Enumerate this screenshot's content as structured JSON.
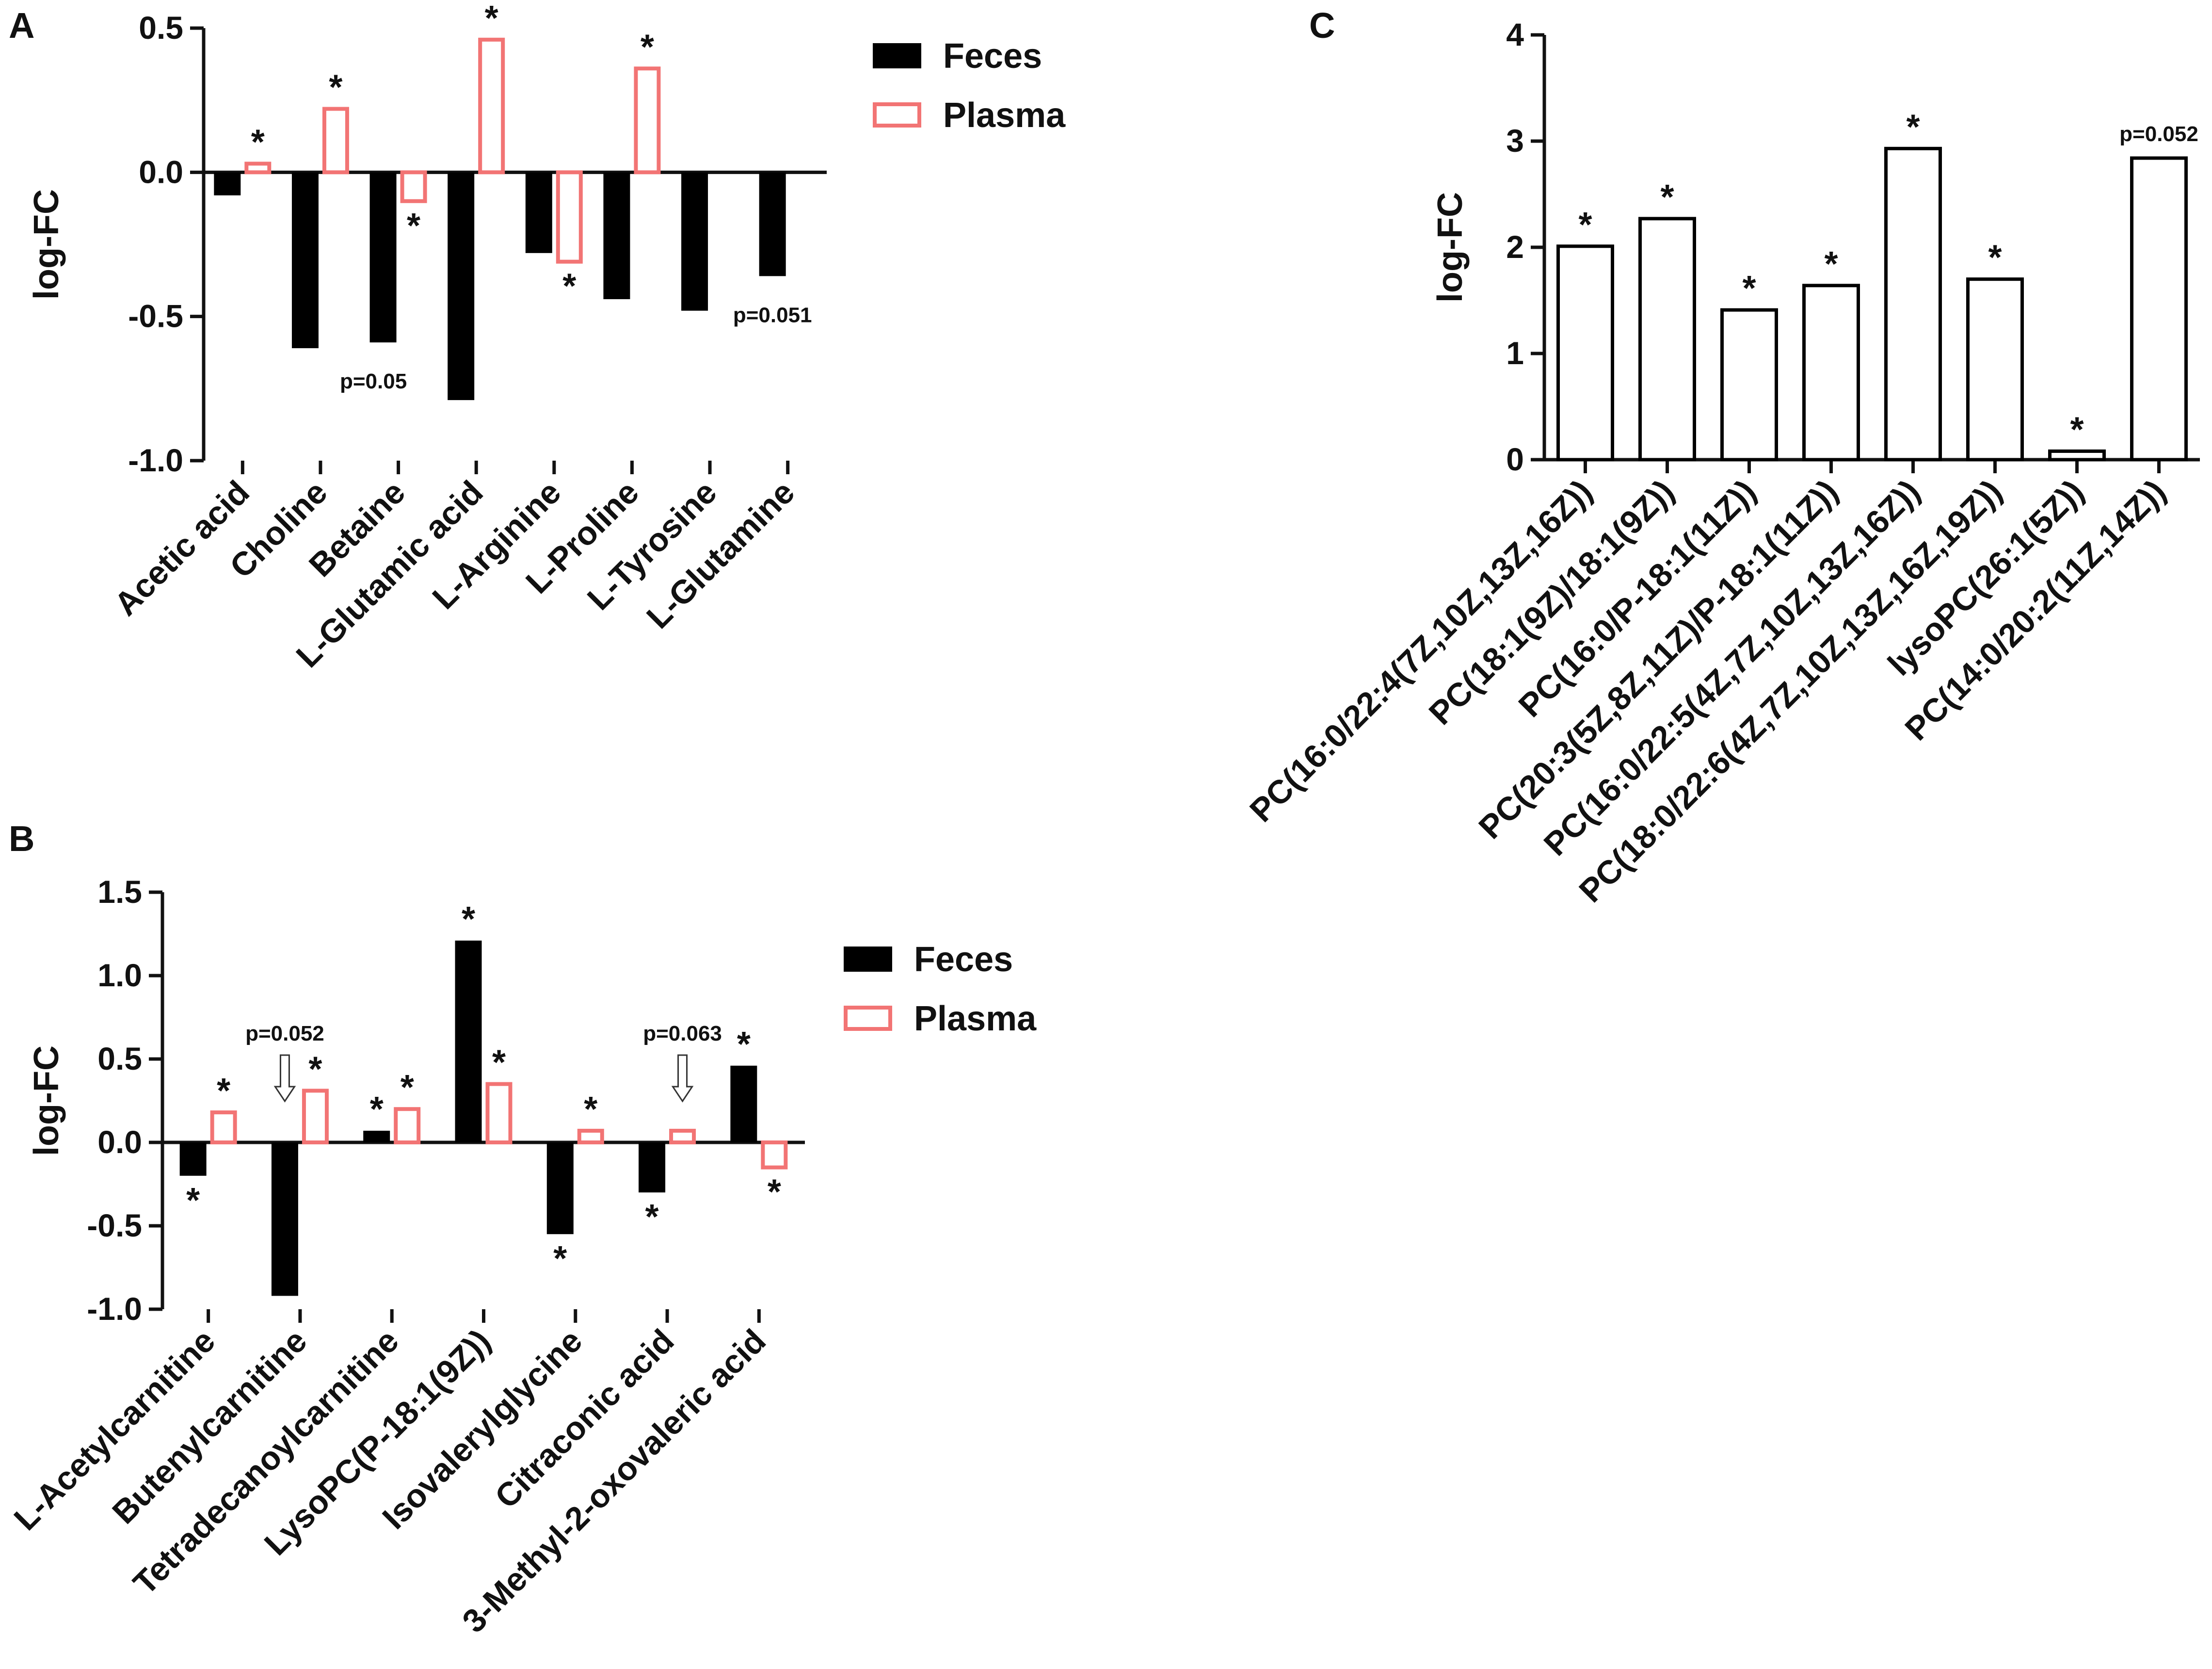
{
  "colors": {
    "feces": "#000000",
    "plasma": "#f27474",
    "open_bar": "#000000"
  },
  "chart_data": [
    {
      "type": "bar",
      "panel": "A",
      "ylabel": "log-FC",
      "ylim": [
        -1.0,
        0.5
      ],
      "yticks": [
        0.5,
        0.0,
        -0.5,
        -1.0
      ],
      "ytick_labels": [
        "0.5",
        "0.0",
        "-0.5",
        "-1.0"
      ],
      "categories": [
        "Acetic acid",
        "Choline",
        "Betaine",
        "L-Glutamic acid",
        "L-Arginine",
        "L-Proline",
        "L-Tyrosine",
        "L-Glutamine"
      ],
      "legend": {
        "position": "top-right",
        "entries": [
          "Feces",
          "Plasma"
        ]
      },
      "series": [
        {
          "name": "Feces",
          "style": "filled",
          "values": [
            -0.08,
            -0.61,
            -0.59,
            -0.79,
            -0.28,
            -0.44,
            -0.48,
            -0.36
          ],
          "annotations": [
            "",
            "",
            "p=0.05",
            "",
            "",
            "",
            "",
            "p=0.051"
          ]
        },
        {
          "name": "Plasma",
          "style": "outline",
          "values": [
            0.03,
            0.22,
            -0.1,
            0.46,
            -0.31,
            0.36,
            null,
            null
          ],
          "annotations": [
            "*",
            "*",
            "*",
            "*",
            "*",
            "*",
            "",
            ""
          ]
        }
      ]
    },
    {
      "type": "bar",
      "panel": "B",
      "ylabel": "log-FC",
      "ylim": [
        -1.0,
        1.5
      ],
      "yticks": [
        1.5,
        1.0,
        0.5,
        0.0,
        -0.5,
        -1.0
      ],
      "ytick_labels": [
        "1.5",
        "1.0",
        "0.5",
        "0.0",
        "-0.5",
        "-1.0"
      ],
      "categories": [
        "L-Acetylcarnitine",
        "Butenylcarnitine",
        "Tetradecanoylcarnitine",
        "LysoPC(P-18:1(9Z))",
        "Isovalerylglycine",
        "Citraconic acid",
        "3-Methyl-2-oxovaleric acid"
      ],
      "legend": {
        "position": "right",
        "entries": [
          "Feces",
          "Plasma"
        ]
      },
      "series": [
        {
          "name": "Feces",
          "style": "filled",
          "values": [
            -0.2,
            -0.92,
            0.07,
            1.21,
            -0.55,
            -0.3,
            0.46
          ],
          "annotations": [
            "*",
            "p=0.052",
            "*",
            "*",
            "*",
            "*",
            "*"
          ]
        },
        {
          "name": "Plasma",
          "style": "outline",
          "values": [
            0.18,
            0.31,
            0.2,
            0.35,
            0.07,
            0.07,
            -0.15
          ],
          "annotations": [
            "*",
            "*",
            "*",
            "*",
            "*",
            "p=0.063",
            "*"
          ]
        }
      ]
    },
    {
      "type": "bar",
      "panel": "C",
      "ylabel": "log-FC",
      "ylim": [
        0,
        4
      ],
      "yticks": [
        4,
        3,
        2,
        1,
        0
      ],
      "ytick_labels": [
        "4",
        "3",
        "2",
        "1",
        "0"
      ],
      "categories": [
        "PC(16:0/22:4(7Z,10Z,13Z,16Z))",
        "PC(18:1(9Z)/18:1(9Z))",
        "PC(16:0/P-18:1(11Z))",
        "PC(20:3(5Z,8Z,11Z)/P-18:1(11Z))",
        "PC(16:0/22:5(4Z,7Z,10Z,13Z,16Z))",
        "PC(18:0/22:6(4Z,7Z,10Z,13Z,16Z,19Z))",
        "lysoPC(26:1(5Z))",
        "PC(14:0/20:2(11Z,14Z))"
      ],
      "series": [
        {
          "name": "log-FC",
          "style": "outline-black",
          "values": [
            2.01,
            2.27,
            1.41,
            1.64,
            2.93,
            1.7,
            0.08,
            2.84
          ],
          "annotations": [
            "*",
            "*",
            "*",
            "*",
            "*",
            "*",
            "*",
            "p=0.052"
          ]
        }
      ]
    }
  ]
}
